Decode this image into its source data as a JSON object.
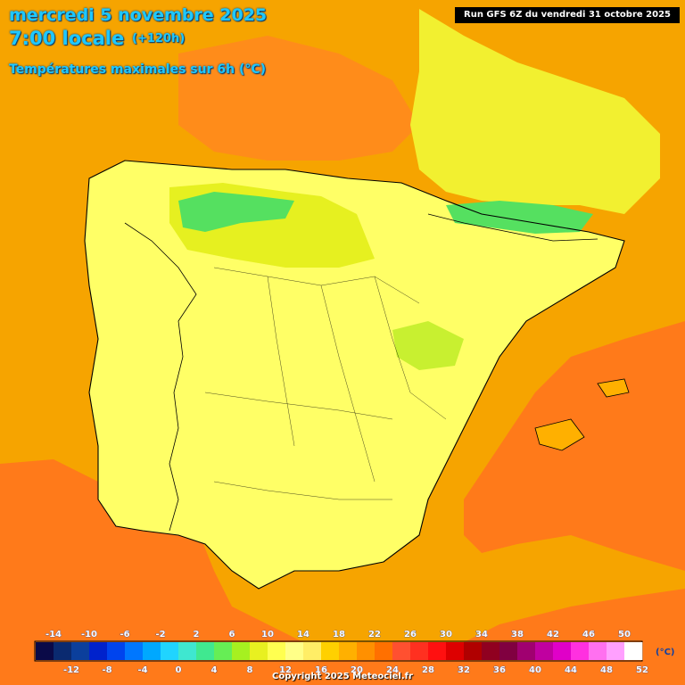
{
  "header": {
    "date": "mercredi 5 novembre 2025",
    "time": "7:00 locale",
    "offset": "(+120h)",
    "parameter": "Températures maximales sur 6h (°C)",
    "run": "Run GFS 6Z du vendredi 31 octobre 2025"
  },
  "footer": {
    "copyright": "Copyright 2025 Meteociel.fr"
  },
  "legend": {
    "unit": "(°C)",
    "top_labels": [
      "-14",
      "-10",
      "-6",
      "-2",
      "2",
      "6",
      "10",
      "14",
      "18",
      "22",
      "26",
      "30",
      "34",
      "38",
      "42",
      "46",
      "50"
    ],
    "bottom_labels": [
      "-12",
      "-8",
      "-4",
      "0",
      "4",
      "8",
      "12",
      "16",
      "20",
      "24",
      "28",
      "32",
      "36",
      "40",
      "44",
      "48",
      "52"
    ],
    "colors": [
      "#0a0a48",
      "#0a2a70",
      "#0b3f9c",
      "#0022cc",
      "#0044ee",
      "#0077ff",
      "#00a8ff",
      "#20d4ff",
      "#3fe7d0",
      "#40e890",
      "#66ee55",
      "#a6f020",
      "#e8f020",
      "#ffff50",
      "#ffff88",
      "#ffee66",
      "#ffd000",
      "#ffb000",
      "#ff9000",
      "#ff7000",
      "#ff5030",
      "#ff3020",
      "#ff1010",
      "#dd0000",
      "#b00000",
      "#900020",
      "#800040",
      "#a00070",
      "#c000a0",
      "#e000c8",
      "#ff30e0",
      "#ff70f0",
      "#ffa0ff",
      "#ffffff"
    ]
  },
  "map": {
    "colors": {
      "sea_hot": "#ff7a1a",
      "sea_warm": "#f6a400",
      "land_mild": "#ffff66",
      "land_cool": "#e6f020",
      "cold_patch": "#55e060",
      "border": "#000000"
    }
  }
}
